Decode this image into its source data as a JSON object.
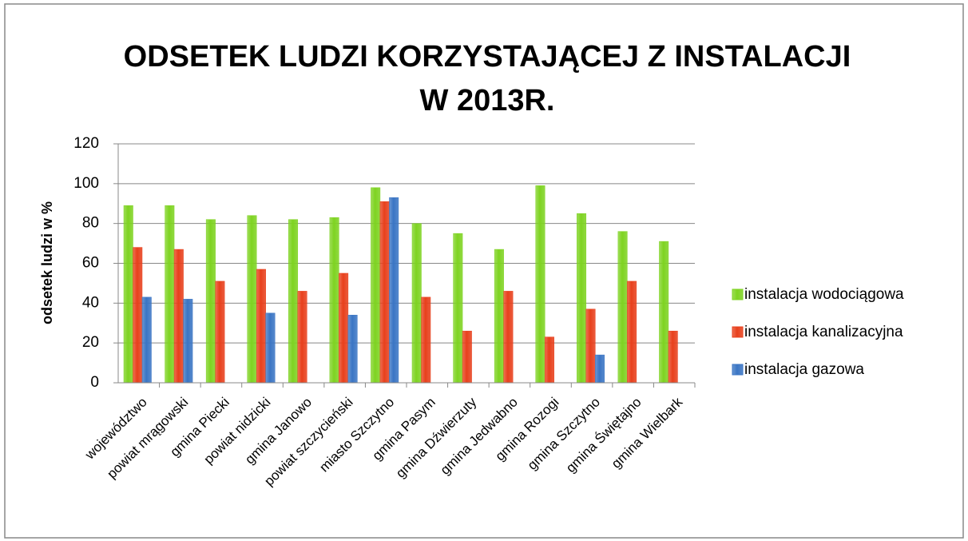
{
  "chart_data": {
    "type": "bar",
    "title": [
      "ODSETEK LUDZI KORZYSTAJĄCEJ Z INSTALACJI",
      "W 2013R."
    ],
    "y_label": "odsetek ludzi w %",
    "categories": [
      "województwo",
      "powiat mrągowski",
      "gmina Piecki",
      "powiat nidzicki",
      "gmina Janowo",
      "powiat szczycieński",
      "miasto Szczytno",
      "gmina Pasym",
      "gmina Dźwierzuty",
      "gmina Jedwabno",
      "gmina Rozogi",
      "gmina Szczytno",
      "gmina Świętajno",
      "gmina Wielbark"
    ],
    "series": [
      {
        "name": "instalacja wodociągowa",
        "color": "#7ed321",
        "values": [
          89,
          89,
          82,
          84,
          82,
          83,
          98,
          80,
          75,
          67,
          99,
          85,
          76,
          71
        ]
      },
      {
        "name": "instalacja kanalizacyjna",
        "color": "#e8401c",
        "values": [
          68,
          67,
          51,
          57,
          46,
          55,
          91,
          43,
          26,
          46,
          23,
          37,
          51,
          26
        ]
      },
      {
        "name": "instalacja gazowa",
        "color": "#3a75c4",
        "values": [
          43,
          42,
          0,
          35,
          0,
          34,
          93,
          0,
          0,
          0,
          0,
          14,
          0,
          0
        ]
      }
    ],
    "ylim": [
      0,
      120
    ],
    "yticks": [
      0,
      20,
      40,
      60,
      80,
      100,
      120
    ],
    "grid": true,
    "legend": "right"
  }
}
